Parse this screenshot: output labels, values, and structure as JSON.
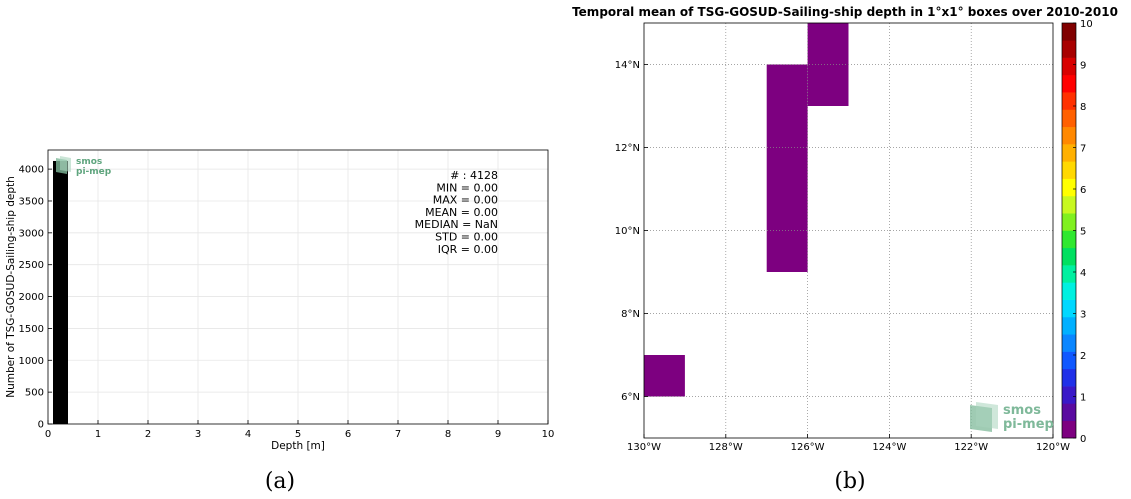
{
  "chart_data": [
    {
      "type": "bar",
      "panel_label": "(a)",
      "xlabel": "Depth [m]",
      "ylabel": "Number of TSG-GOSUD-Sailing-ship depth",
      "xlim": [
        0,
        10
      ],
      "ylim": [
        0,
        4300
      ],
      "x_ticks": [
        "0",
        "1",
        "2",
        "3",
        "4",
        "5",
        "6",
        "7",
        "8",
        "9",
        "10"
      ],
      "y_ticks": [
        "0",
        "500",
        "1000",
        "1500",
        "2000",
        "2500",
        "3000",
        "3500",
        "4000"
      ],
      "grid": true,
      "bars": [
        {
          "x_start": 0.1,
          "x_end": 0.4,
          "value": 4128
        }
      ],
      "stats": [
        "# : 4128",
        "MIN = 0.00",
        "MAX =  0.00",
        "MEAN = 0.00",
        "MEDIAN = NaN",
        "STD = 0.00",
        "IQR = 0.00"
      ],
      "logo": {
        "line1": "smos",
        "line2": "pi-mep"
      }
    },
    {
      "type": "heatmap",
      "panel_label": "(b)",
      "title": "Temporal mean of TSG-GOSUD-Sailing-ship depth in 1°x1° boxes over 2010-2010",
      "xlim": [
        -130,
        -120
      ],
      "ylim": [
        5,
        15
      ],
      "x_ticks": [
        {
          "value": -130,
          "label": "130°W"
        },
        {
          "value": -128,
          "label": "128°W"
        },
        {
          "value": -126,
          "label": "126°W"
        },
        {
          "value": -124,
          "label": "124°W"
        },
        {
          "value": -122,
          "label": "122°W"
        },
        {
          "value": -120,
          "label": "120°W"
        }
      ],
      "y_ticks": [
        {
          "value": 6,
          "label": "6°N"
        },
        {
          "value": 8,
          "label": "8°N"
        },
        {
          "value": 10,
          "label": "10°N"
        },
        {
          "value": 12,
          "label": "12°N"
        },
        {
          "value": 14,
          "label": "14°N"
        }
      ],
      "grid": true,
      "cells": [
        {
          "lon": [
            -130,
            -129
          ],
          "lat": [
            6,
            7
          ],
          "value": 0
        },
        {
          "lon": [
            -127,
            -126
          ],
          "lat": [
            9,
            14
          ],
          "value": 0
        },
        {
          "lon": [
            -126,
            -125
          ],
          "lat": [
            13,
            15
          ],
          "value": 0
        }
      ],
      "colorbar": {
        "min": 0,
        "max": 10,
        "tick_labels": [
          "0",
          "1",
          "2",
          "3",
          "4",
          "5",
          "6",
          "7",
          "8",
          "9",
          "10"
        ],
        "colors": [
          "#7d0080",
          "#5a0aa0",
          "#3a18c8",
          "#2030e8",
          "#1058ff",
          "#0a86ff",
          "#00b0ff",
          "#00d8ff",
          "#00f0e0",
          "#00f0a0",
          "#00e060",
          "#30e830",
          "#80f020",
          "#c8f820",
          "#ffff00",
          "#ffd800",
          "#ffb000",
          "#ff8800",
          "#ff6000",
          "#ff3000",
          "#ff0000",
          "#d80000",
          "#a80000",
          "#800000"
        ]
      },
      "logo": {
        "line1": "smos",
        "line2": "pi-mep"
      }
    }
  ]
}
